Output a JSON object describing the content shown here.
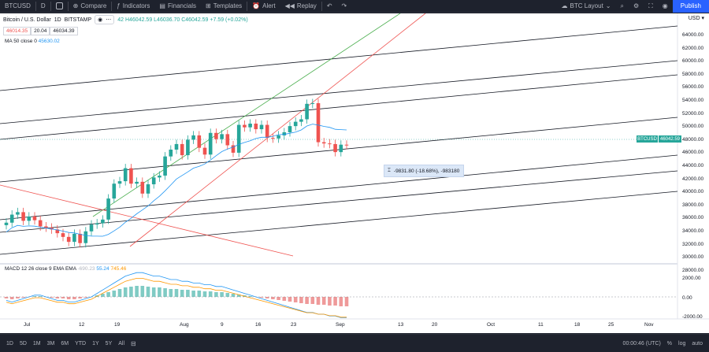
{
  "toolbar": {
    "symbol": "BTCUSD",
    "interval": "D",
    "compare": "Compare",
    "indicators": "Indicators",
    "financials": "Financials",
    "templates": "Templates",
    "alert": "Alert",
    "replay": "Replay",
    "layout": "BTC Layout",
    "publish": "Publish"
  },
  "legend": {
    "title": "Bitcoin / U.S. Dollar",
    "interval": "1D",
    "exchange": "BITSTAMP",
    "ohlc": "42  H46042.59  L46036.70  C46042.59  +7.59 (+0.02%)",
    "bid": "46014.35",
    "spread": "20.04",
    "ask": "46034.39",
    "ma": "MA 50 close 0",
    "ma_value": "45630.02",
    "macd": "MACD 12 26 close 9 EMA EMA",
    "macd_hist": "-690.23",
    "macd_line": "55.24",
    "macd_signal": "745.46",
    "currency": "USD"
  },
  "price_axis": [
    "64000.00",
    "62000.00",
    "60000.00",
    "58000.00",
    "56000.00",
    "54000.00",
    "52000.00",
    "50000.00",
    "48000.00",
    "46000.00",
    "44000.00",
    "42000.00",
    "40000.00",
    "38000.00",
    "36000.00",
    "34000.00",
    "32000.00",
    "30000.00",
    "28000.00"
  ],
  "macd_axis": [
    "2000.00",
    "0.00",
    "-2000.00"
  ],
  "time_axis": [
    "Jul",
    "12",
    "19",
    "Aug",
    "9",
    "16",
    "23",
    "Sep",
    "13",
    "20",
    "Oct",
    "11",
    "18",
    "25",
    "Nov"
  ],
  "last_price_label": "46042.59",
  "symbol_label": "BTCUSD",
  "measure_text": "-9831.80 (-18.68%), -983180",
  "bottom": {
    "ranges": [
      "1D",
      "5D",
      "1M",
      "3M",
      "6M",
      "YTD",
      "1Y",
      "5Y",
      "All"
    ],
    "clock": "00:00:46 (UTC)",
    "percent": "%",
    "log": "log",
    "auto": "auto"
  },
  "colors": {
    "up": "#26a69a",
    "down": "#ef5350",
    "ma": "#2196f3",
    "accent": "#2962ff"
  }
}
